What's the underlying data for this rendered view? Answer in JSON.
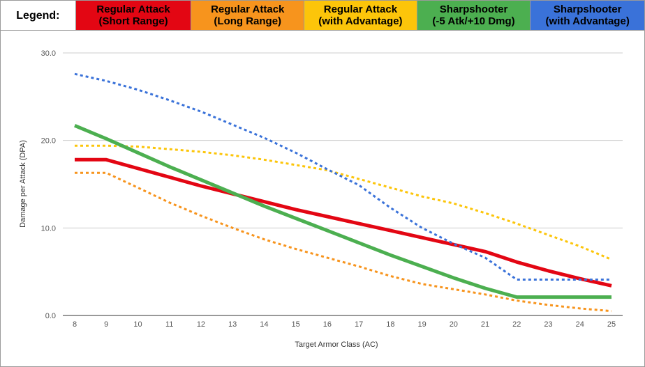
{
  "legend": {
    "title": "Legend:",
    "items": [
      {
        "line1": "Regular Attack",
        "line2": "(Short Range)",
        "color": "#e30613"
      },
      {
        "line1": "Regular Attack",
        "line2": "(Long Range)",
        "color": "#f7941d"
      },
      {
        "line1": "Regular Attack",
        "line2": "(with Advantage)",
        "color": "#fcc50a"
      },
      {
        "line1": "Sharpshooter",
        "line2": "(-5 Atk/+10 Dmg)",
        "color": "#4caf50"
      },
      {
        "line1": "Sharpshooter",
        "line2": "(with Advantage)",
        "color": "#3a72d9"
      }
    ]
  },
  "chart_data": {
    "type": "line",
    "xlabel": "Target Armor Class (AC)",
    "ylabel": "Damage per Attack (DPA)",
    "x": [
      8,
      9,
      10,
      11,
      12,
      13,
      14,
      15,
      16,
      17,
      18,
      19,
      20,
      21,
      22,
      23,
      24,
      25
    ],
    "ylim": [
      0,
      30
    ],
    "yticks": [
      "0.0",
      "10.0",
      "20.0",
      "30.0"
    ],
    "grid": true,
    "series": [
      {
        "name": "Regular Attack (Short Range)",
        "color": "#e30613",
        "dashed": false,
        "width": 5,
        "values": [
          17.8,
          17.8,
          16.8,
          15.8,
          14.8,
          13.9,
          13.0,
          12.1,
          11.3,
          10.5,
          9.7,
          8.9,
          8.1,
          7.3,
          6.1,
          5.1,
          4.2,
          3.4
        ]
      },
      {
        "name": "Regular Attack (Long Range)",
        "color": "#f7941d",
        "dashed": true,
        "width": 3,
        "values": [
          16.3,
          16.3,
          14.6,
          12.9,
          11.4,
          10.0,
          8.7,
          7.6,
          6.6,
          5.6,
          4.5,
          3.6,
          3.0,
          2.4,
          1.7,
          1.2,
          0.8,
          0.5
        ]
      },
      {
        "name": "Regular Attack (with Advantage)",
        "color": "#fcc50a",
        "dashed": true,
        "width": 3,
        "values": [
          19.4,
          19.4,
          19.3,
          19.0,
          18.7,
          18.3,
          17.8,
          17.2,
          16.6,
          15.6,
          14.6,
          13.6,
          12.8,
          11.7,
          10.5,
          9.2,
          7.9,
          6.4
        ]
      },
      {
        "name": "Sharpshooter (-5 Atk/+10 Dmg)",
        "color": "#4caf50",
        "dashed": false,
        "width": 5,
        "values": [
          21.7,
          20.2,
          18.6,
          17.0,
          15.5,
          14.0,
          12.5,
          11.1,
          9.7,
          8.3,
          6.9,
          5.6,
          4.3,
          3.1,
          2.1,
          2.1,
          2.1,
          2.1
        ]
      },
      {
        "name": "Sharpshooter (with Advantage)",
        "color": "#3a72d9",
        "dashed": true,
        "width": 3,
        "values": [
          27.6,
          26.8,
          25.8,
          24.6,
          23.3,
          21.8,
          20.3,
          18.6,
          16.7,
          14.9,
          12.3,
          10.0,
          8.2,
          6.6,
          4.1,
          4.1,
          4.1,
          4.1
        ]
      }
    ]
  }
}
